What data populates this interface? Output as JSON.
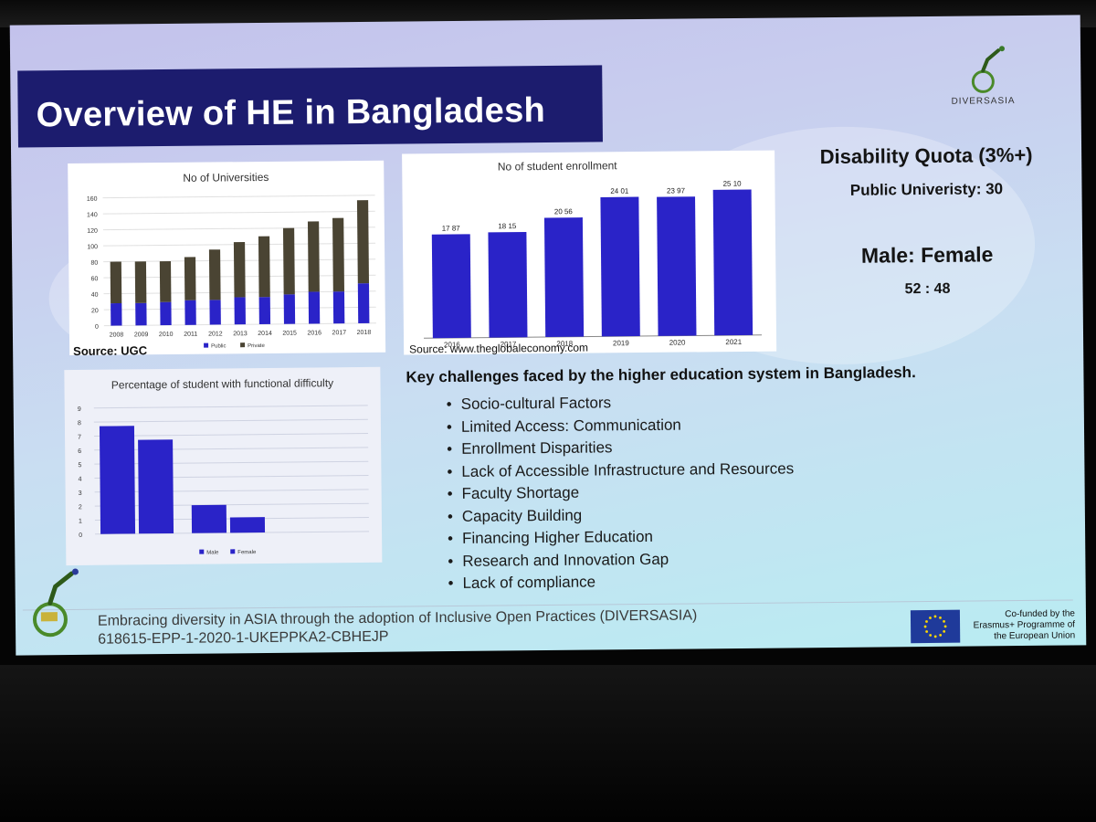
{
  "slide": {
    "title": "Overview of HE in Bangladesh",
    "logo_text": "DIVERSASIA",
    "quota_title": "Disability Quota (3%+)",
    "public_university": "Public Univeristy: 30",
    "ratio_title": "Male: Female",
    "ratio_value": "52 : 48",
    "key_challenges_title": "Key challenges faced by the higher education system in Bangladesh.",
    "challenges": [
      "Socio-cultural Factors",
      "Limited Access: Communication",
      "Enrollment Disparities",
      "Lack of Accessible Infrastructure and Resources",
      "Faculty Shortage",
      "Capacity Building",
      "Financing Higher Education",
      "Research and Innovation Gap",
      "Lack of compliance"
    ],
    "footer_line1": "Embracing diversity in ASIA through the adoption of Inclusive Open Practices (DIVERSASIA)",
    "footer_line2": "618615-EPP-1-2020-1-UKEPPKA2-CBHEJP",
    "eu_text": "Co-funded by the Erasmus+ Programme of the European Union",
    "colors": {
      "title_bg": "#1c1c6e",
      "bar_blue": "#2a23c8",
      "bar_dark": "#4a4433"
    }
  },
  "chart_data": [
    {
      "type": "bar",
      "stacked": true,
      "title": "No of Universities",
      "source": "Source: UGC",
      "categories": [
        "2008",
        "2009",
        "2010",
        "2011",
        "2012",
        "2013",
        "2014",
        "2015",
        "2016",
        "2017",
        "2018"
      ],
      "series": [
        {
          "name": "Public",
          "values": [
            28,
            28,
            29,
            31,
            31,
            34,
            34,
            37,
            40,
            40,
            50
          ],
          "color": "#2a23c8"
        },
        {
          "name": "Private",
          "values": [
            52,
            52,
            51,
            54,
            63,
            69,
            76,
            83,
            88,
            92,
            104
          ],
          "color": "#4a4433"
        }
      ],
      "yticks": [
        0,
        20,
        40,
        60,
        80,
        100,
        120,
        140,
        160
      ],
      "ylim": [
        0,
        160
      ]
    },
    {
      "type": "bar",
      "title": "No of student enrollment",
      "source": "Source: www.theglobaleconomy.com",
      "categories": [
        "2016",
        "2017",
        "2018",
        "2019",
        "2020",
        "2021"
      ],
      "values": [
        17.87,
        18.15,
        20.56,
        24.01,
        23.97,
        25.1
      ],
      "data_labels": [
        "17 87",
        "18 15",
        "20 56",
        "24 01",
        "23 97",
        "25 10"
      ],
      "color": "#2a23c8"
    },
    {
      "type": "bar",
      "title": "Percentage of student with functional difficulty",
      "groups": 3,
      "series": [
        {
          "name": "Male",
          "values": [
            7.7,
            2.0,
            0
          ],
          "color": "#2a23c8"
        },
        {
          "name": "Female",
          "values": [
            6.7,
            1.1,
            0
          ],
          "color": "#2a23c8"
        }
      ],
      "yticks": [
        0,
        1,
        2,
        3,
        4,
        5,
        6,
        7,
        8,
        9
      ],
      "ylim": [
        0,
        9
      ]
    }
  ]
}
